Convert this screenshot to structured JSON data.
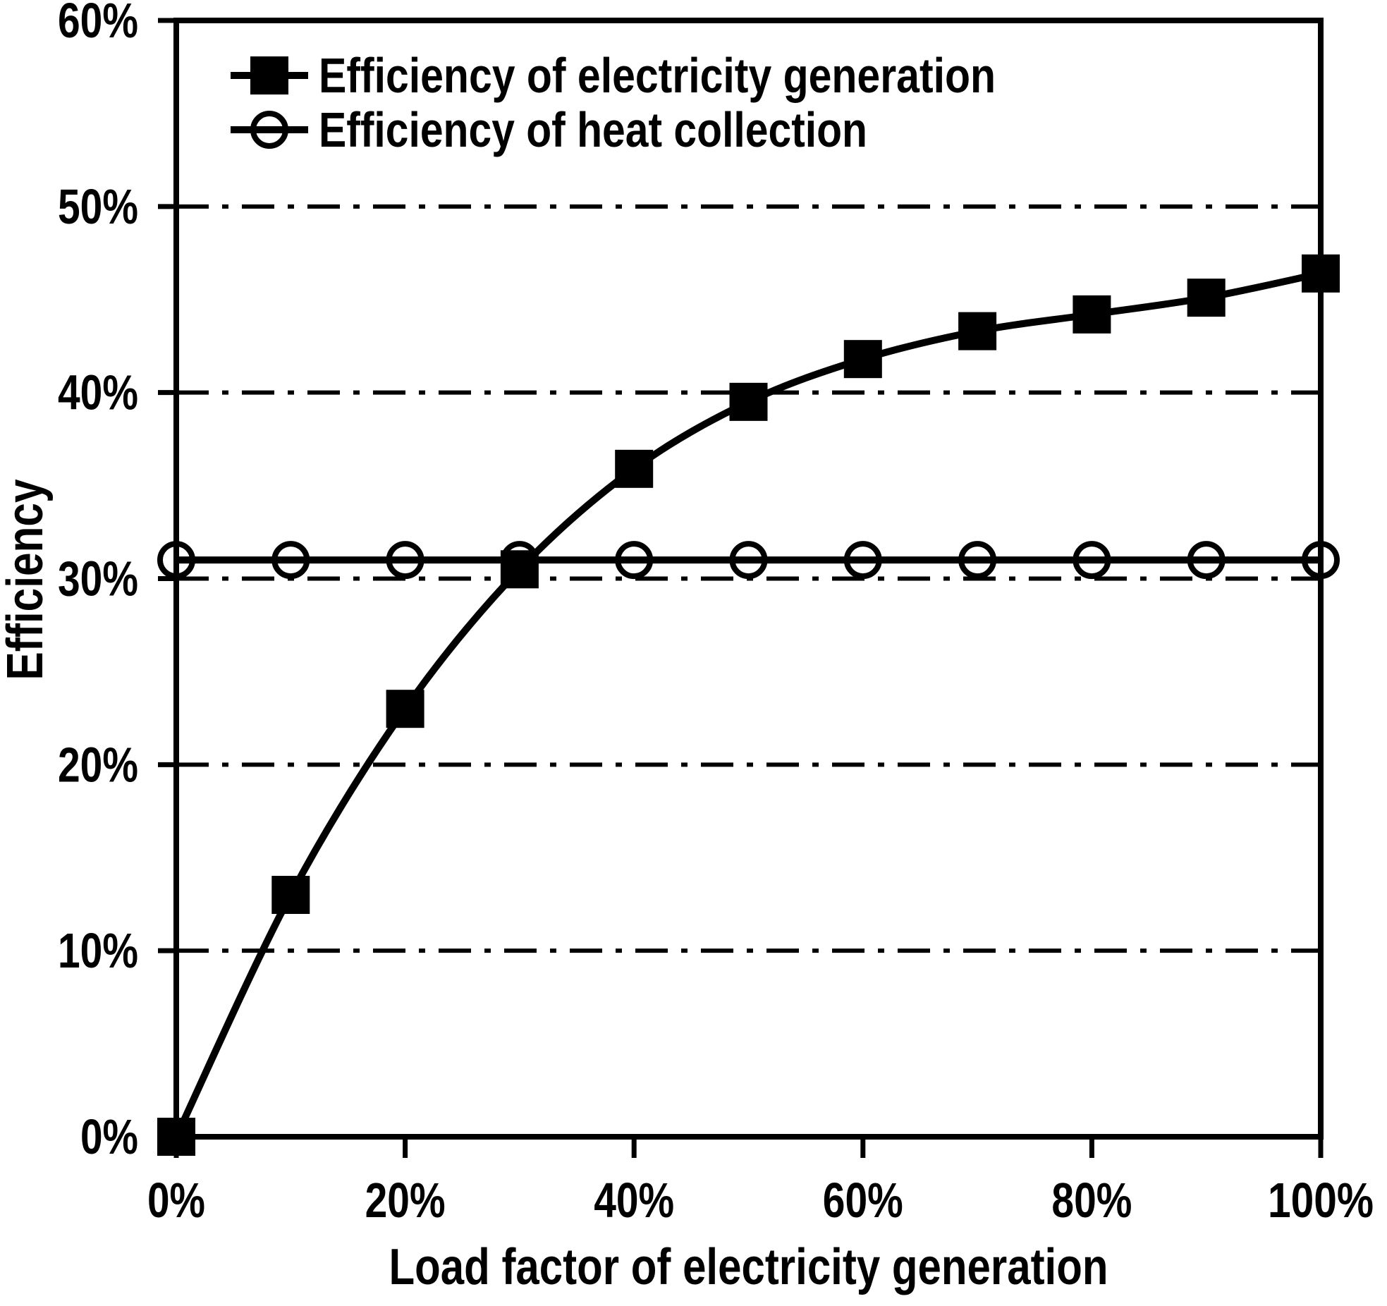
{
  "chart_data": {
    "type": "line",
    "title": "",
    "xlabel": "Load factor of electricity generation",
    "ylabel": "Efficiency",
    "xlim": [
      0,
      100
    ],
    "ylim": [
      0,
      60
    ],
    "x": [
      0,
      10,
      20,
      30,
      40,
      50,
      60,
      70,
      80,
      90,
      100
    ],
    "series": [
      {
        "name": "Efficiency of electricity generation",
        "marker": "filled-square",
        "line_style": "solid",
        "smooth": true,
        "values": [
          0,
          13.0,
          23.0,
          30.5,
          35.9,
          39.5,
          41.8,
          43.3,
          44.2,
          45.1,
          46.4
        ]
      },
      {
        "name": "Efficiency of heat collection",
        "marker": "open-circle",
        "line_style": "solid",
        "smooth": false,
        "values": [
          31,
          31,
          31,
          31,
          31,
          31,
          31,
          31,
          31,
          31,
          31
        ]
      }
    ],
    "x_tick_values": [
      0,
      20,
      40,
      60,
      80,
      100
    ],
    "x_tick_labels": [
      "0%",
      "20%",
      "40%",
      "60%",
      "80%",
      "100%"
    ],
    "y_tick_values": [
      0,
      10,
      20,
      30,
      40,
      50,
      60
    ],
    "y_tick_labels": [
      "0%",
      "10%",
      "20%",
      "30%",
      "40%",
      "50%",
      "60%"
    ],
    "gridlines": {
      "horizontal_at": [
        10,
        20,
        30,
        40,
        50
      ],
      "style": "dash-dot"
    },
    "legend": {
      "position": "top-left-inside",
      "entries": [
        "Efficiency of electricity generation",
        "Efficiency of heat collection"
      ]
    },
    "colors": {
      "foreground": "#000000",
      "background": "#ffffff"
    }
  }
}
